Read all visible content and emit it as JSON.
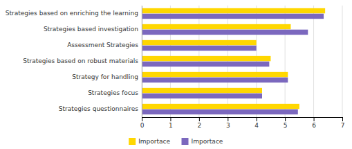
{
  "chart_data": {
    "type": "bar",
    "orientation": "horizontal",
    "categories": [
      "Strategies based on enriching the learning",
      "Strategies based investigation",
      "Assessment Strategies",
      "Strategies based on robust materials",
      "Strategy for handling",
      "Strategies focus",
      "Strategies questionnaires"
    ],
    "series": [
      {
        "name": "Importace",
        "color": "#FFD700",
        "values": [
          6.4,
          5.2,
          4.0,
          4.5,
          5.1,
          4.2,
          5.5
        ]
      },
      {
        "name": "Importace",
        "color": "#7B68BE",
        "values": [
          6.35,
          5.8,
          4.0,
          4.45,
          5.1,
          4.2,
          5.45
        ]
      }
    ],
    "xlim": [
      0,
      7
    ],
    "xticks": [
      0,
      1,
      2,
      3,
      4,
      5,
      6,
      7
    ],
    "grid": true,
    "legend": "bottom"
  }
}
